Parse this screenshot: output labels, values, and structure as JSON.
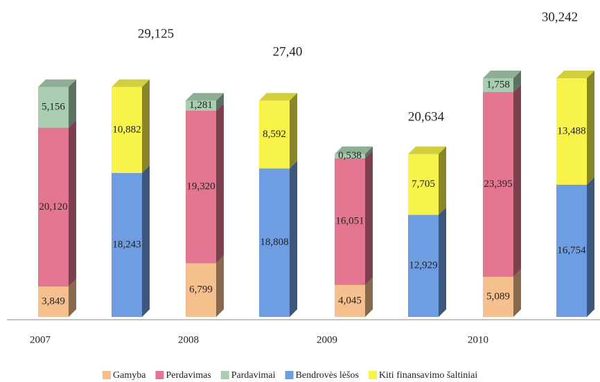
{
  "chart_data": {
    "type": "stacked_bar_3d",
    "categories": [
      "2007",
      "2008",
      "2009",
      "2010"
    ],
    "total_labels": [
      "29,125",
      "27,40",
      "20,634",
      "30,242"
    ],
    "stacks": [
      {
        "series": [
          {
            "name": "Gamyba",
            "color": "#f6c08e",
            "values": [
              3.849,
              6.799,
              4.045,
              5.089
            ],
            "value_labels": [
              "3,849",
              "6,799",
              "4,045",
              "5,089"
            ]
          },
          {
            "name": "Perdavimas",
            "color": "#e27590",
            "values": [
              20.12,
              19.32,
              16.051,
              23.395
            ],
            "value_labels": [
              "20,120",
              "19,320",
              "16,051",
              "23,395"
            ]
          },
          {
            "name": "Pardavimai",
            "color": "#a8cdb0",
            "values": [
              5.156,
              1.281,
              0.538,
              1.758
            ],
            "value_labels": [
              "5,156",
              "1,281",
              "0,538",
              "1,758"
            ]
          }
        ]
      },
      {
        "series": [
          {
            "name": "Bendrovės lėšos",
            "color": "#6f9de2",
            "values": [
              18.243,
              18.808,
              12.929,
              16.754
            ],
            "value_labels": [
              "18,243",
              "18,808",
              "12,929",
              "16,754"
            ]
          },
          {
            "name": "Kiti finansavimo šaltiniai",
            "color": "#f7f34a",
            "values": [
              10.882,
              8.592,
              7.705,
              13.488
            ],
            "value_labels": [
              "10,882",
              "8,592",
              "7,705",
              "13,488"
            ]
          }
        ]
      }
    ]
  }
}
